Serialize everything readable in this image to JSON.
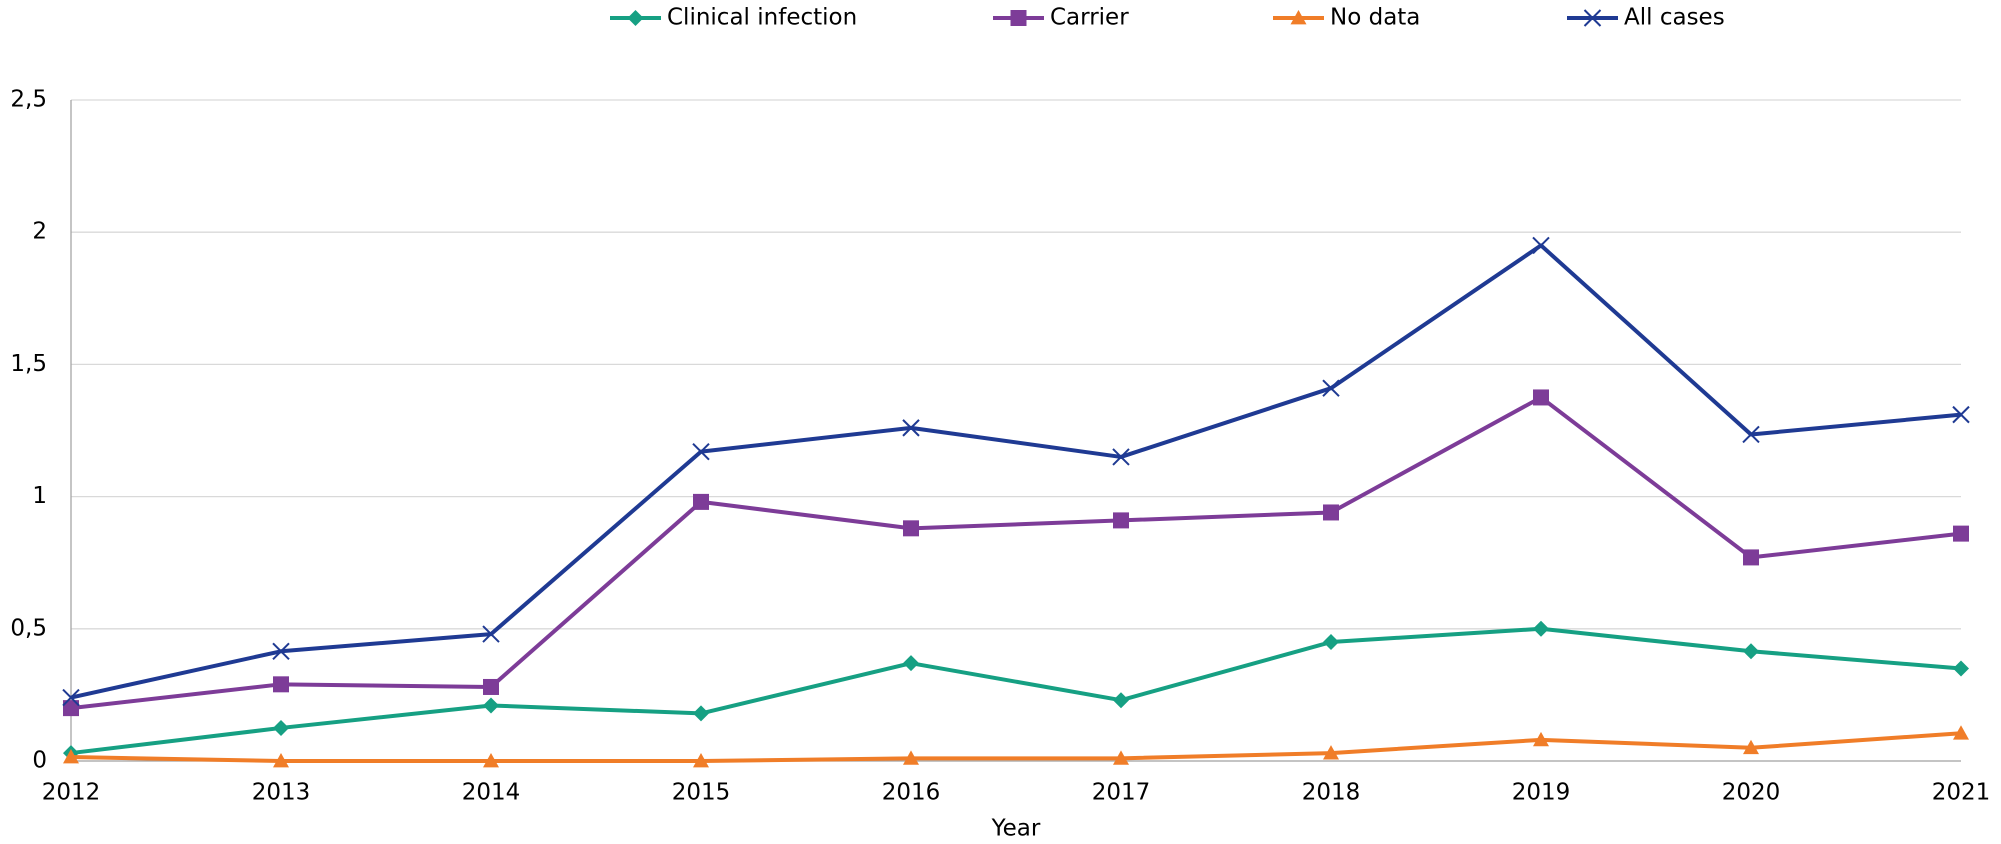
{
  "chart_data": {
    "type": "line",
    "xlabel": "Year",
    "categories": [
      "2012",
      "2013",
      "2014",
      "2015",
      "2016",
      "2017",
      "2018",
      "2019",
      "2020",
      "2021"
    ],
    "series": [
      {
        "name": "Clinical infection",
        "color": "#16a083",
        "marker": "diamond",
        "values": [
          0.03,
          0.125,
          0.21,
          0.18,
          0.37,
          0.23,
          0.45,
          0.5,
          0.415,
          0.35
        ]
      },
      {
        "name": "Carrier",
        "color": "#7d3c98",
        "marker": "square",
        "values": [
          0.2,
          0.29,
          0.28,
          0.98,
          0.88,
          0.91,
          0.94,
          1.375,
          0.77,
          0.86
        ]
      },
      {
        "name": "No data",
        "color": "#f07d28",
        "marker": "triangle",
        "values": [
          0.015,
          0,
          0,
          0,
          0.01,
          0.01,
          0.03,
          0.08,
          0.05,
          0.105
        ]
      },
      {
        "name": "All cases",
        "color": "#1f3a93",
        "marker": "x",
        "values": [
          0.24,
          0.415,
          0.48,
          1.17,
          1.26,
          1.15,
          1.41,
          1.95,
          1.235,
          1.31
        ]
      }
    ],
    "ylim": [
      0,
      2.5
    ],
    "yticks": [
      0,
      {
        "value": 0.5,
        "label": "0,5"
      },
      1,
      {
        "value": 1.5,
        "label": "1,5"
      },
      2,
      {
        "value": 2.5,
        "label": "2,5"
      }
    ],
    "grid": true,
    "legend": "top"
  }
}
